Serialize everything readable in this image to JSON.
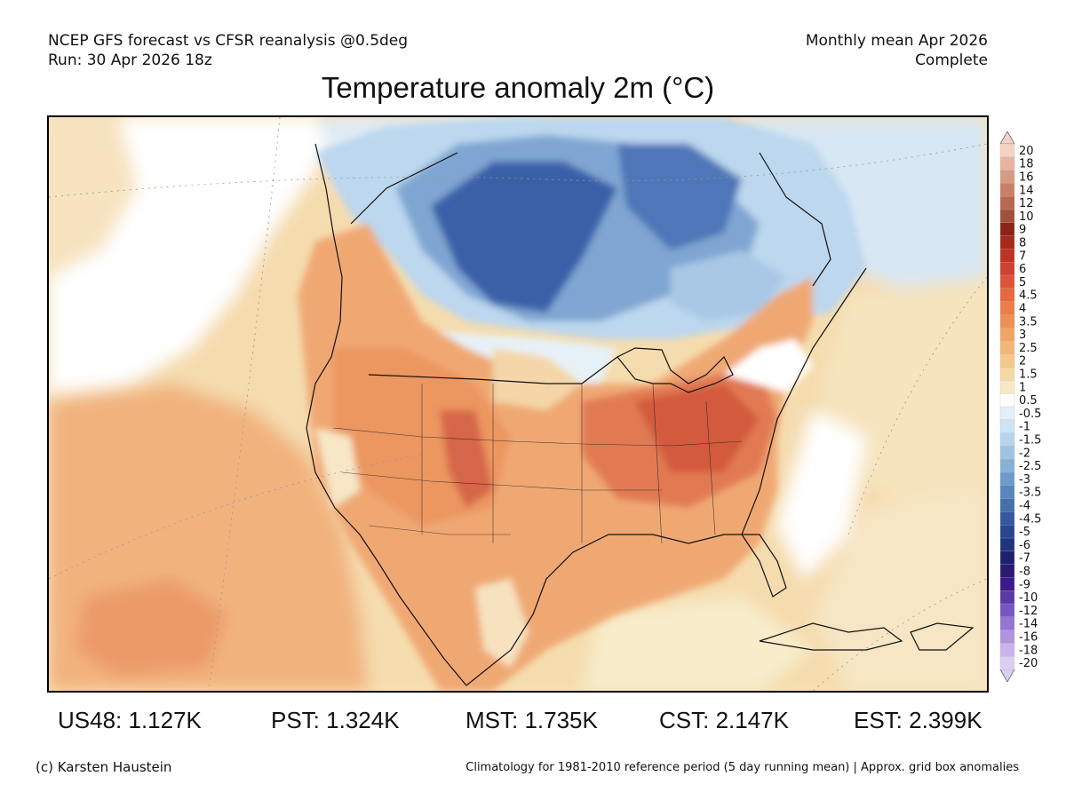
{
  "header": {
    "left_line1": "NCEP GFS forecast vs CFSR reanalysis @0.5deg",
    "left_line2": "Run: 30 Apr 2026 18z",
    "right_line1": "Monthly mean Apr 2026",
    "right_line2": "Complete"
  },
  "title": "Temperature anomaly 2m (°C)",
  "stats": {
    "us48": "US48: 1.127K",
    "pst": "PST: 1.324K",
    "mst": "MST: 1.735K",
    "cst": "CST: 2.147K",
    "est": "EST: 2.399K"
  },
  "footer": {
    "left": "(c) Karsten Haustein",
    "right": "Climatology for 1981-2010 reference period (5 day running mean) | Approx. grid box anomalies"
  },
  "colorbar": {
    "labels": [
      "20",
      "18",
      "16",
      "14",
      "12",
      "10",
      "9",
      "8",
      "7",
      "6",
      "5",
      "4.5",
      "4",
      "3.5",
      "3",
      "2.5",
      "2",
      "1.5",
      "1",
      "0.5",
      "-0.5",
      "-1",
      "-1.5",
      "-2",
      "-2.5",
      "-3",
      "-3.5",
      "-4",
      "-4.5",
      "-5",
      "-6",
      "-7",
      "-8",
      "-9",
      "-10",
      "-12",
      "-14",
      "-16",
      "-18",
      "-20"
    ],
    "colors": [
      "#f4d2c4",
      "#e8b4a0",
      "#d99a84",
      "#c98068",
      "#b86850",
      "#a2503a",
      "#8a2418",
      "#a52a1c",
      "#bd3424",
      "#cf4030",
      "#dd5438",
      "#e5683e",
      "#eb7e48",
      "#ef9054",
      "#f2a464",
      "#f4b676",
      "#f5c88c",
      "#f6d8a4",
      "#f7e8c4",
      "#ffffff",
      "#e4f0f8",
      "#cde4f2",
      "#b6d5ec",
      "#9fc4e2",
      "#86b0d6",
      "#6e9bca",
      "#5886bc",
      "#4470ae",
      "#3558a0",
      "#2a4690",
      "#23347e",
      "#1e226c",
      "#2a1a70",
      "#3c1a8a",
      "#5a3aa6",
      "#7656c2",
      "#9474d4",
      "#b094e0",
      "#c8b4ea",
      "#dccdf2"
    ],
    "arrow_top_color": "#f4d2c4",
    "arrow_bottom_color": "#dccdf2"
  }
}
